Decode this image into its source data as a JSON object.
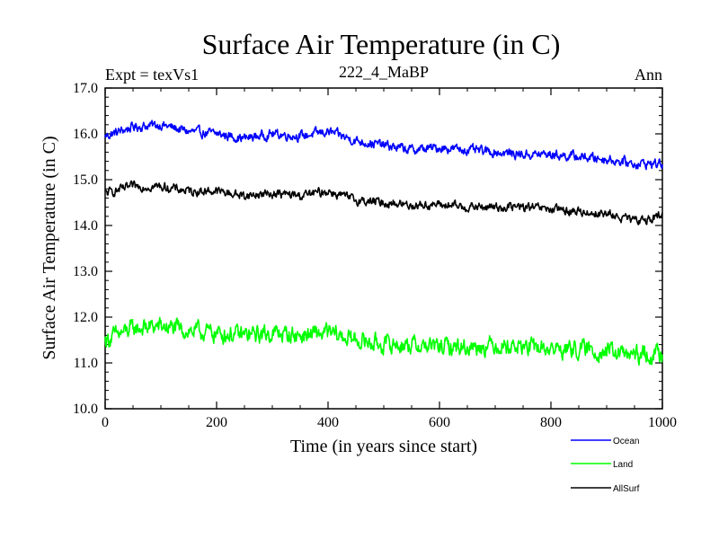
{
  "chart_data": {
    "type": "line",
    "title": "Surface Air Temperature (in C)",
    "subtitle_left": "Expt = texVs1",
    "subtitle_center": "222_4_MaBP",
    "subtitle_right": "Ann",
    "xlabel": "Time (in years since start)",
    "ylabel": "Surface Air Temperature (in C)",
    "xlim": [
      0,
      1000
    ],
    "ylim": [
      10.0,
      17.0
    ],
    "x_ticks": [
      0,
      200,
      400,
      600,
      800,
      1000
    ],
    "x_tick_labels": [
      "0",
      "200",
      "400",
      "600",
      "800",
      "1000"
    ],
    "y_ticks": [
      10,
      11,
      12,
      13,
      14,
      15,
      16,
      17
    ],
    "y_tick_labels": [
      "10.0",
      "11.0",
      "12.0",
      "13.0",
      "14.0",
      "15.0",
      "16.0",
      "17.0"
    ],
    "x": [
      0,
      50,
      100,
      150,
      200,
      250,
      300,
      350,
      400,
      450,
      500,
      550,
      600,
      650,
      700,
      750,
      800,
      850,
      900,
      950,
      1000
    ],
    "series": [
      {
        "name": "Ocean",
        "color": "#0000ff",
        "values": [
          15.95,
          16.15,
          16.2,
          16.05,
          16.0,
          15.9,
          16.0,
          15.95,
          16.05,
          15.85,
          15.75,
          15.65,
          15.7,
          15.65,
          15.6,
          15.55,
          15.55,
          15.5,
          15.45,
          15.35,
          15.35
        ],
        "noise": 0.15
      },
      {
        "name": "Land",
        "color": "#00ff00",
        "values": [
          11.5,
          11.75,
          11.8,
          11.7,
          11.65,
          11.6,
          11.65,
          11.6,
          11.65,
          11.5,
          11.4,
          11.4,
          11.35,
          11.35,
          11.4,
          11.35,
          11.3,
          11.3,
          11.25,
          11.15,
          11.2
        ],
        "noise": 0.28
      },
      {
        "name": "AllSurf",
        "color": "#000000",
        "values": [
          14.7,
          14.85,
          14.85,
          14.75,
          14.75,
          14.65,
          14.7,
          14.65,
          14.75,
          14.55,
          14.5,
          14.45,
          14.45,
          14.4,
          14.4,
          14.4,
          14.35,
          14.3,
          14.25,
          14.1,
          14.2
        ],
        "noise": 0.14
      }
    ]
  }
}
